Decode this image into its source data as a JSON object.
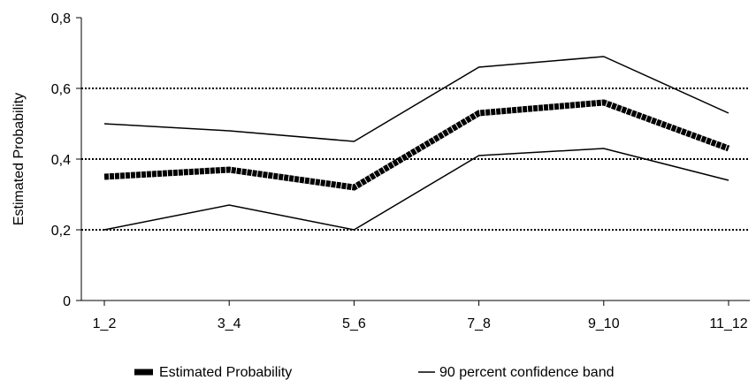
{
  "chart_data": {
    "type": "line",
    "categories": [
      "1_2",
      "3_4",
      "5_6",
      "7_8",
      "9_10",
      "11_12"
    ],
    "ylim": [
      0,
      0.8
    ],
    "yticks": [
      0,
      0.2,
      0.4,
      0.6,
      0.8
    ],
    "ytick_labels": [
      "0",
      "0,2",
      "0,4",
      "0,6",
      "0,8"
    ],
    "xlabel": "",
    "ylabel": "Estimated Probability",
    "grid": "dotted horizontal at 0,2 0,4 0,6",
    "legend_position": "bottom",
    "series": [
      {
        "name": "Estimated Probability",
        "role": "estimate",
        "color": "#000000",
        "values": [
          0.35,
          0.37,
          0.32,
          0.53,
          0.56,
          0.43
        ]
      },
      {
        "name": "90 percent confidence band",
        "role": "upper",
        "color": "#000000",
        "values": [
          0.5,
          0.48,
          0.45,
          0.66,
          0.69,
          0.53
        ]
      },
      {
        "name": "90 percent confidence band",
        "role": "lower",
        "color": "#000000",
        "values": [
          0.2,
          0.27,
          0.2,
          0.41,
          0.43,
          0.34
        ]
      }
    ],
    "legend": [
      {
        "label": "Estimated Probability",
        "style": "thick"
      },
      {
        "label": "90 percent confidence band",
        "style": "thin"
      }
    ]
  }
}
